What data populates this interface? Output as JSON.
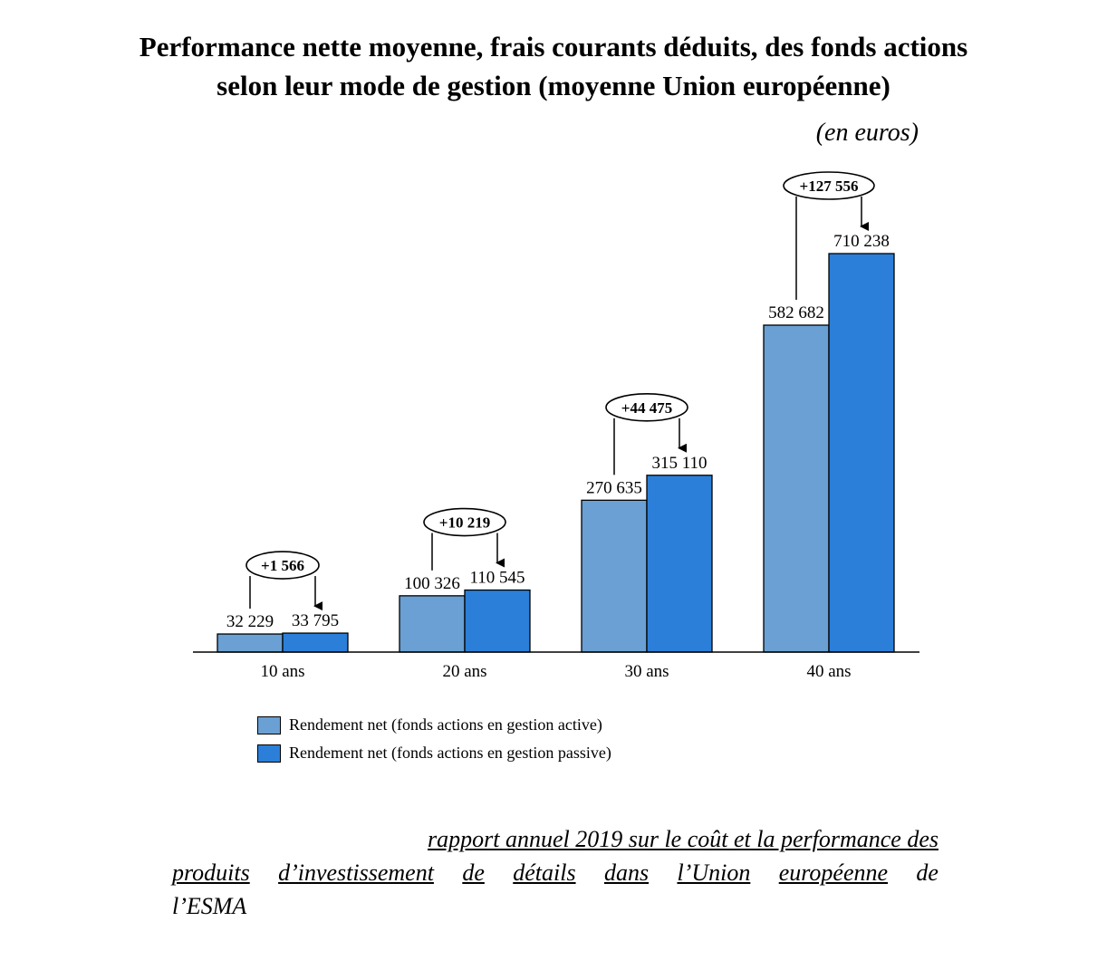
{
  "title_line1": "Performance nette moyenne, frais courants déduits, des fonds actions",
  "title_line2": "selon leur mode de gestion (moyenne Union européenne)",
  "units": "(en euros)",
  "colors": {
    "active": "#6aa0d3",
    "passive": "#2b7fd8",
    "outline": "#000000"
  },
  "chart_data": {
    "type": "bar",
    "categories": [
      "10 ans",
      "20 ans",
      "30 ans",
      "40 ans"
    ],
    "series": [
      {
        "name": "Rendement net (fonds actions en gestion active)",
        "values": [
          32229,
          100326,
          270635,
          582682
        ],
        "labels": [
          "32 229",
          "100 326",
          "270 635",
          "582 682"
        ]
      },
      {
        "name": "Rendement net (fonds actions en gestion passive)",
        "values": [
          33795,
          110545,
          315110,
          710238
        ],
        "labels": [
          "33 795",
          "110 545",
          "315 110",
          "710 238"
        ]
      }
    ],
    "differences": [
      "+1 566",
      "+10 219",
      "+44 475",
      "+127 556"
    ],
    "ylim": [
      0,
      790000
    ],
    "grid": false,
    "legend_position": "bottom-left"
  },
  "source": {
    "line1": "rapport annuel 2019 sur le coût et la performance des",
    "line2_words": [
      "produits",
      "d’investissement",
      "de",
      "détails",
      "dans",
      "l’Union",
      "européenne",
      "de"
    ],
    "line3": "l’ESMA"
  }
}
